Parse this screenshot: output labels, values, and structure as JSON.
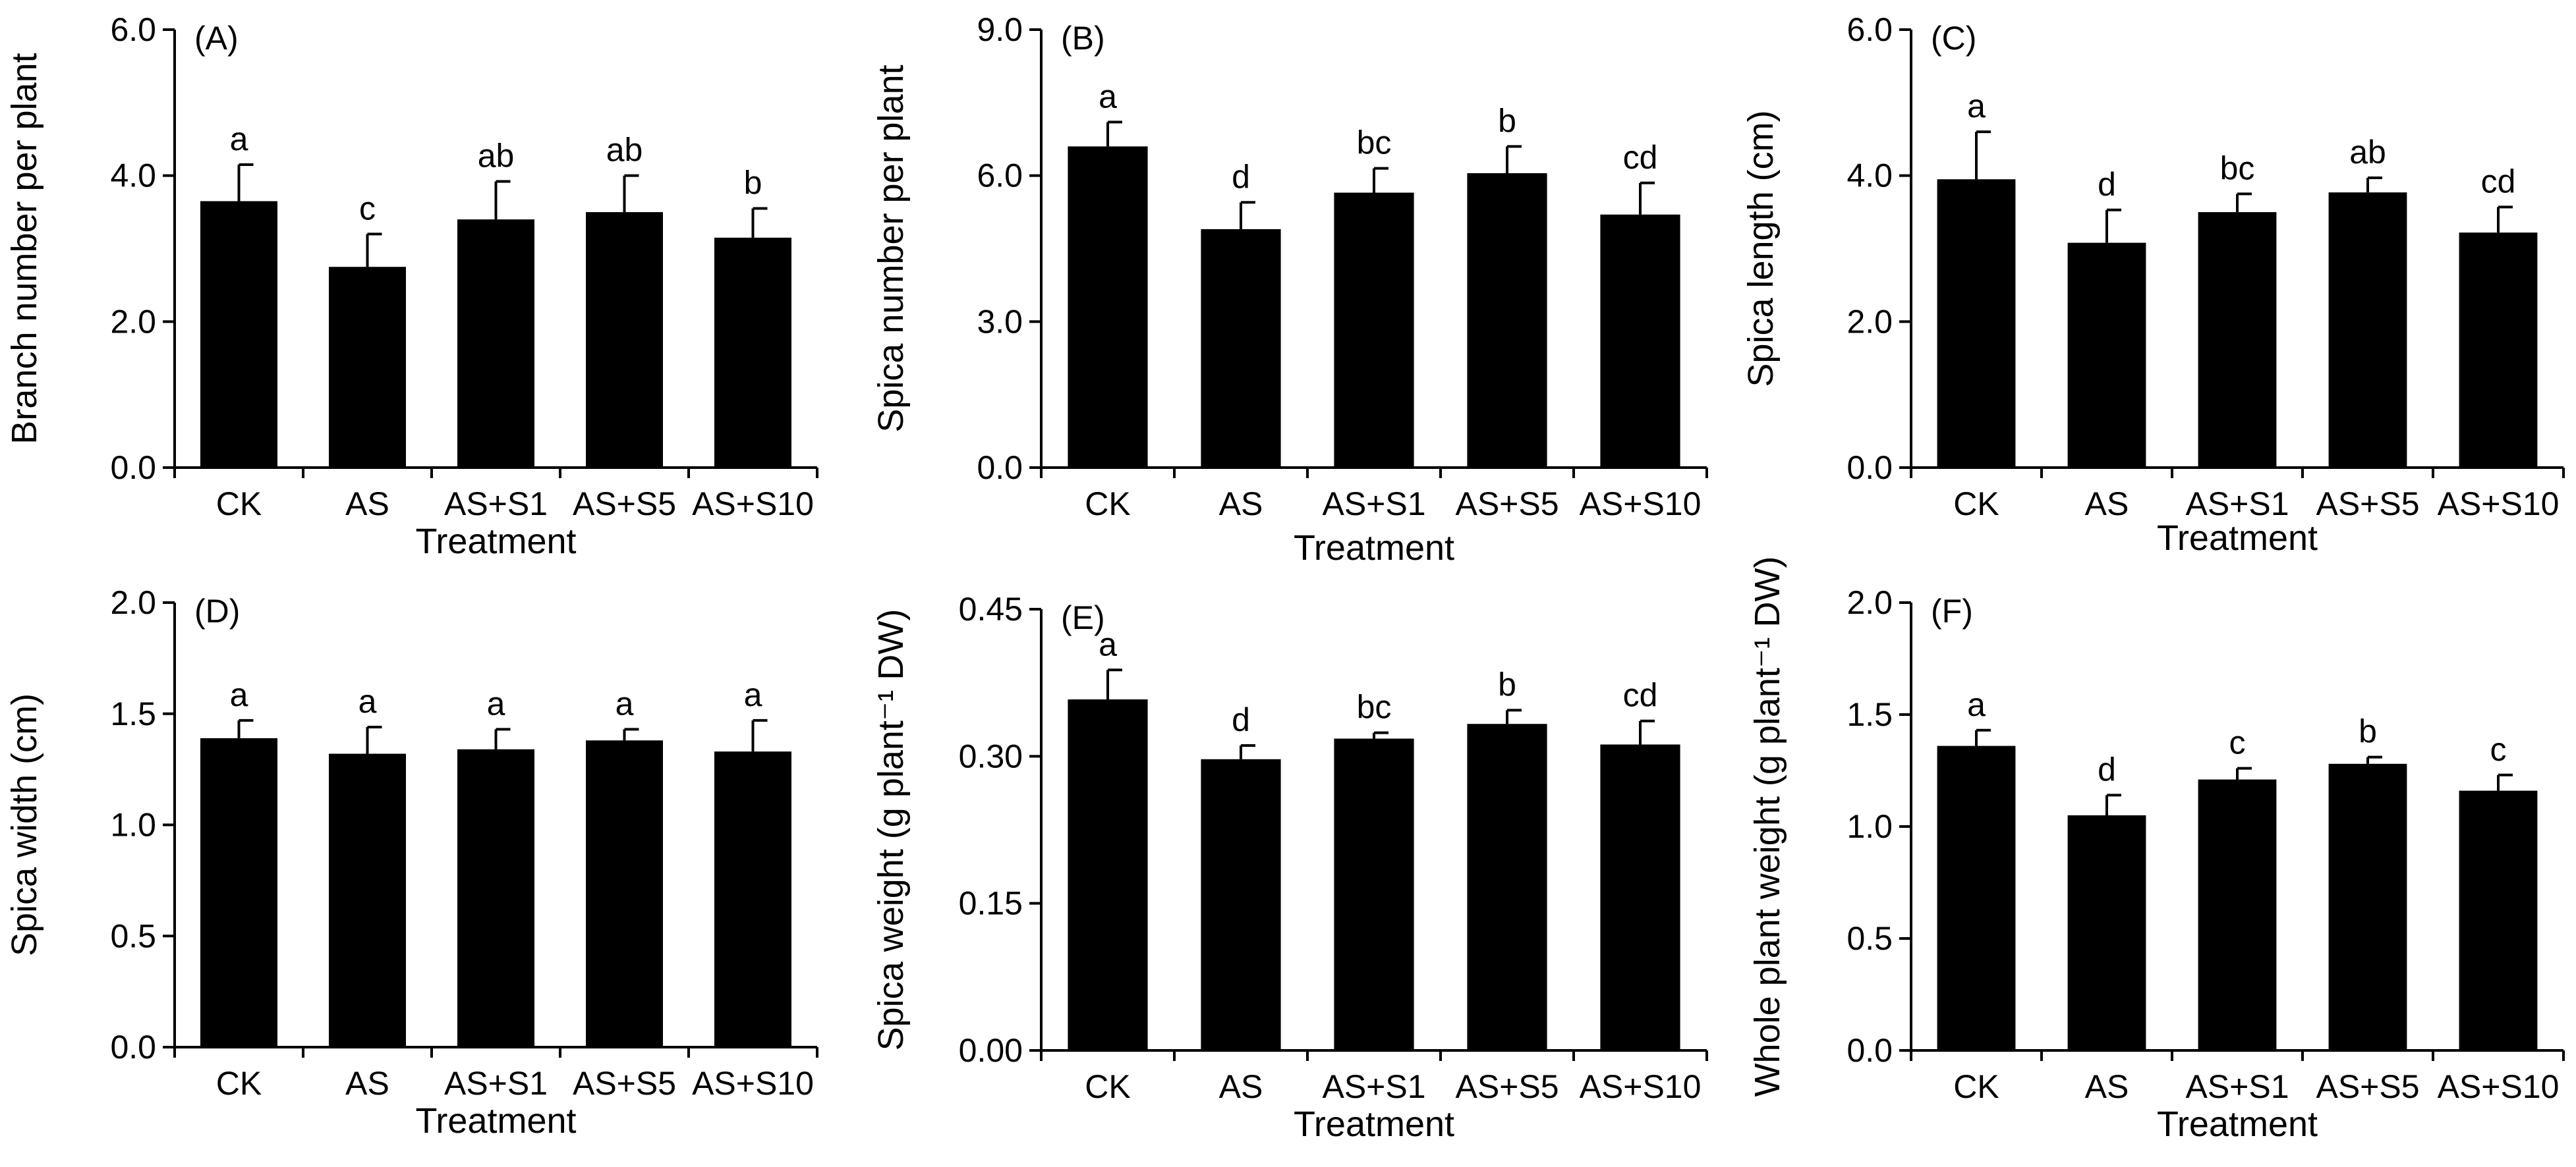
{
  "figure": {
    "colors": {
      "bar": "#000000",
      "axis": "#000000",
      "background": "#ffffff"
    }
  },
  "chart_data": [
    {
      "type": "bar",
      "panel_label": "(A)",
      "title": "",
      "categories": [
        "CK",
        "AS",
        "AS+S1",
        "AS+S5",
        "AS+S10"
      ],
      "values": [
        3.65,
        2.75,
        3.4,
        3.5,
        3.15
      ],
      "errors": [
        0.5,
        0.45,
        0.52,
        0.5,
        0.4
      ],
      "significance": [
        "a",
        "c",
        "ab",
        "ab",
        "b"
      ],
      "xlabel": "Treatment",
      "ylabel": "Branch number per plant",
      "ylim": [
        0,
        6
      ],
      "yticks": [
        0,
        2,
        4,
        6
      ],
      "ytick_labels": [
        "0.0",
        "2.0",
        "4.0",
        "6.0"
      ]
    },
    {
      "type": "bar",
      "panel_label": "(B)",
      "title": "",
      "categories": [
        "CK",
        "AS",
        "AS+S1",
        "AS+S5",
        "AS+S10"
      ],
      "values": [
        6.6,
        4.9,
        5.65,
        6.05,
        5.2
      ],
      "errors": [
        0.5,
        0.55,
        0.5,
        0.55,
        0.65
      ],
      "significance": [
        "a",
        "d",
        "bc",
        "b",
        "cd"
      ],
      "xlabel": "Treatment",
      "ylabel": "Spica number per plant",
      "ylim": [
        0,
        9
      ],
      "yticks": [
        0,
        3,
        6,
        9
      ],
      "ytick_labels": [
        "0.0",
        "3.0",
        "6.0",
        "9.0"
      ]
    },
    {
      "type": "bar",
      "panel_label": "(C)",
      "title": "",
      "categories": [
        "CK",
        "AS",
        "AS+S1",
        "AS+S5",
        "AS+S10"
      ],
      "values": [
        3.95,
        3.08,
        3.5,
        3.77,
        3.22
      ],
      "errors": [
        0.65,
        0.45,
        0.25,
        0.2,
        0.35
      ],
      "significance": [
        "a",
        "d",
        "bc",
        "ab",
        "cd"
      ],
      "xlabel": "Treatment",
      "ylabel": "Spica length (cm)",
      "ylim": [
        0,
        6
      ],
      "yticks": [
        0,
        2,
        4,
        6
      ],
      "ytick_labels": [
        "0.0",
        "2.0",
        "4.0",
        "6.0"
      ]
    },
    {
      "type": "bar",
      "panel_label": "(D)",
      "title": "",
      "categories": [
        "CK",
        "AS",
        "AS+S1",
        "AS+S5",
        "AS+S10"
      ],
      "values": [
        1.39,
        1.32,
        1.34,
        1.38,
        1.33
      ],
      "errors": [
        0.08,
        0.12,
        0.09,
        0.05,
        0.14
      ],
      "significance": [
        "a",
        "a",
        "a",
        "a",
        "a"
      ],
      "xlabel": "Treatment",
      "ylabel": "Spica width (cm)",
      "ylim": [
        0,
        2
      ],
      "yticks": [
        0,
        0.5,
        1,
        1.5,
        2
      ],
      "ytick_labels": [
        "0.0",
        "0.5",
        "1.0",
        "1.5",
        "2.0"
      ]
    },
    {
      "type": "bar",
      "panel_label": "(E)",
      "title": "",
      "categories": [
        "CK",
        "AS",
        "AS+S1",
        "AS+S5",
        "AS+S10"
      ],
      "values": [
        0.358,
        0.297,
        0.318,
        0.333,
        0.312
      ],
      "errors": [
        0.03,
        0.014,
        0.006,
        0.014,
        0.024
      ],
      "significance": [
        "a",
        "d",
        "bc",
        "b",
        "cd"
      ],
      "xlabel": "Treatment",
      "ylabel": "Spica weight (g plant⁻¹ DW)",
      "ylim": [
        0,
        0.45
      ],
      "yticks": [
        0,
        0.15,
        0.3,
        0.45
      ],
      "ytick_labels": [
        "0.00",
        "0.15",
        "0.30",
        "0.45"
      ]
    },
    {
      "type": "bar",
      "panel_label": "(F)",
      "title": "",
      "categories": [
        "CK",
        "AS",
        "AS+S1",
        "AS+S5",
        "AS+S10"
      ],
      "values": [
        1.36,
        1.05,
        1.21,
        1.28,
        1.16
      ],
      "errors": [
        0.07,
        0.09,
        0.05,
        0.03,
        0.07
      ],
      "significance": [
        "a",
        "d",
        "c",
        "b",
        "c"
      ],
      "xlabel": "Treatment",
      "ylabel": "Whole plant weight (g plant⁻¹ DW)",
      "ylim": [
        0,
        2
      ],
      "yticks": [
        0,
        0.5,
        1,
        1.5,
        2
      ],
      "ytick_labels": [
        "0.0",
        "0.5",
        "1.0",
        "1.5",
        "2.0"
      ]
    }
  ]
}
